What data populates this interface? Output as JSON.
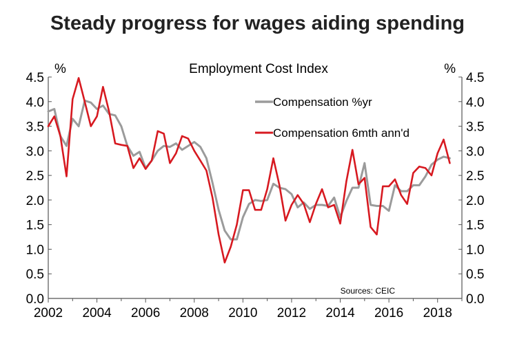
{
  "title": "Steady progress for wages aiding spending",
  "chart_data": {
    "type": "line",
    "subtitle": "Employment Cost Index",
    "ylabel_left": "%",
    "ylabel_right": "%",
    "ylim": [
      0,
      4.5
    ],
    "yticks": [
      "0.0",
      "0.5",
      "1.0",
      "1.5",
      "2.0",
      "2.5",
      "3.0",
      "3.5",
      "4.0",
      "4.5"
    ],
    "xlim": [
      2002,
      2019
    ],
    "xticks": [
      "2002",
      "2004",
      "2006",
      "2008",
      "2010",
      "2012",
      "2014",
      "2016",
      "2018"
    ],
    "source": "Sources: CEIC",
    "colors": {
      "compensation_yr": "#9b9b9b",
      "compensation_6m": "#d71920"
    },
    "series": [
      {
        "name": "Compensation %yr",
        "color": "#9b9b9b",
        "x": [
          2002.0,
          2002.25,
          2002.5,
          2002.75,
          2003.0,
          2003.25,
          2003.5,
          2003.75,
          2004.0,
          2004.25,
          2004.5,
          2004.75,
          2005.0,
          2005.25,
          2005.5,
          2005.75,
          2006.0,
          2006.25,
          2006.5,
          2006.75,
          2007.0,
          2007.25,
          2007.5,
          2007.75,
          2008.0,
          2008.25,
          2008.5,
          2008.75,
          2009.0,
          2009.25,
          2009.5,
          2009.75,
          2010.0,
          2010.25,
          2010.5,
          2010.75,
          2011.0,
          2011.25,
          2011.5,
          2011.75,
          2012.0,
          2012.25,
          2012.5,
          2012.75,
          2013.0,
          2013.25,
          2013.5,
          2013.75,
          2014.0,
          2014.25,
          2014.5,
          2014.75,
          2015.0,
          2015.25,
          2015.5,
          2015.75,
          2016.0,
          2016.25,
          2016.5,
          2016.75,
          2017.0,
          2017.25,
          2017.5,
          2017.75,
          2018.0,
          2018.25,
          2018.5
        ],
        "values": [
          3.8,
          3.85,
          3.3,
          3.1,
          3.65,
          3.5,
          4.02,
          3.98,
          3.85,
          3.92,
          3.75,
          3.72,
          3.5,
          3.1,
          2.9,
          2.98,
          2.65,
          2.8,
          3.0,
          3.1,
          3.08,
          3.15,
          3.02,
          3.1,
          3.18,
          3.08,
          2.85,
          2.35,
          1.8,
          1.38,
          1.2,
          1.2,
          1.65,
          1.92,
          2.0,
          1.98,
          2.0,
          2.33,
          2.25,
          2.22,
          2.12,
          1.85,
          1.95,
          1.82,
          1.9,
          1.9,
          1.88,
          2.05,
          1.65,
          1.98,
          2.25,
          2.25,
          2.75,
          1.9,
          1.88,
          1.88,
          1.78,
          2.3,
          2.18,
          2.18,
          2.3,
          2.3,
          2.48,
          2.72,
          2.82,
          2.88,
          2.85
        ]
      },
      {
        "name": "Compensation 6mth ann'd",
        "color": "#d71920",
        "x": [
          2002.0,
          2002.25,
          2002.5,
          2002.75,
          2003.0,
          2003.25,
          2003.5,
          2003.75,
          2004.0,
          2004.25,
          2004.5,
          2004.75,
          2005.0,
          2005.25,
          2005.5,
          2005.75,
          2006.0,
          2006.25,
          2006.5,
          2006.75,
          2007.0,
          2007.25,
          2007.5,
          2007.75,
          2008.0,
          2008.25,
          2008.5,
          2008.75,
          2009.0,
          2009.25,
          2009.5,
          2009.75,
          2010.0,
          2010.25,
          2010.5,
          2010.75,
          2011.0,
          2011.25,
          2011.5,
          2011.75,
          2012.0,
          2012.25,
          2012.5,
          2012.75,
          2013.0,
          2013.25,
          2013.5,
          2013.75,
          2014.0,
          2014.25,
          2014.5,
          2014.75,
          2015.0,
          2015.25,
          2015.5,
          2015.75,
          2016.0,
          2016.25,
          2016.5,
          2016.75,
          2017.0,
          2017.25,
          2017.5,
          2017.75,
          2018.0,
          2018.25,
          2018.5
        ],
        "values": [
          3.5,
          3.7,
          3.3,
          2.48,
          4.05,
          4.48,
          4.0,
          3.5,
          3.7,
          4.3,
          3.8,
          3.15,
          3.12,
          3.1,
          2.65,
          2.85,
          2.63,
          2.8,
          3.4,
          3.35,
          2.75,
          2.95,
          3.3,
          3.25,
          3.0,
          2.8,
          2.6,
          2.05,
          1.3,
          0.73,
          1.05,
          1.5,
          2.2,
          2.2,
          1.8,
          1.8,
          2.22,
          2.85,
          2.3,
          1.58,
          1.9,
          2.1,
          1.92,
          1.55,
          1.92,
          2.22,
          1.85,
          1.9,
          1.52,
          2.38,
          3.02,
          2.32,
          2.45,
          1.45,
          1.3,
          2.28,
          2.28,
          2.42,
          2.1,
          1.92,
          2.55,
          2.68,
          2.65,
          2.5,
          2.95,
          3.23,
          2.75
        ]
      }
    ]
  }
}
